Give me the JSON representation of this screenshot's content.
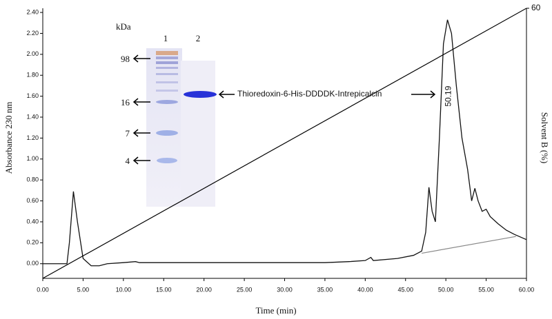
{
  "chart_data": {
    "type": "line",
    "x_label": "Time (min)",
    "y_label": "Absorbance 230 nm",
    "y2_label": "Solvent B (%)",
    "xlim": [
      0,
      60
    ],
    "xticks": [
      {
        "value": 0,
        "label": "0.00"
      },
      {
        "value": 5,
        "label": "5.00"
      },
      {
        "value": 10,
        "label": "10.00"
      },
      {
        "value": 15,
        "label": "15.00"
      },
      {
        "value": 20,
        "label": "20.00"
      },
      {
        "value": 25,
        "label": "25.00"
      },
      {
        "value": 30,
        "label": "30.00"
      },
      {
        "value": 35,
        "label": "35.00"
      },
      {
        "value": 40,
        "label": "40.00"
      },
      {
        "value": 45,
        "label": "45.00"
      },
      {
        "value": 50,
        "label": "50.00"
      },
      {
        "value": 55,
        "label": "55.00"
      },
      {
        "value": 60,
        "label": "60.00"
      }
    ],
    "ylim": [
      -0.14,
      2.44
    ],
    "yticks": [
      {
        "value": 0,
        "label": "0.00"
      },
      {
        "value": 0.2,
        "label": "0.20"
      },
      {
        "value": 0.4,
        "label": "0.40"
      },
      {
        "value": 0.6,
        "label": "0.60"
      },
      {
        "value": 0.8,
        "label": "0.80"
      },
      {
        "value": 1.0,
        "label": "1.00"
      },
      {
        "value": 1.2,
        "label": "1.20"
      },
      {
        "value": 1.4,
        "label": "1.40"
      },
      {
        "value": 1.6,
        "label": "1.60"
      },
      {
        "value": 1.8,
        "label": "1.80"
      },
      {
        "value": 2.0,
        "label": "2.00"
      },
      {
        "value": 2.2,
        "label": "2.20"
      },
      {
        "value": 2.4,
        "label": "2.40"
      }
    ],
    "y2lim": [
      0,
      60
    ],
    "y2ticks": [
      60
    ],
    "series": [
      {
        "color": "#111111",
        "x": [
          0,
          3,
          3.3,
          3.8,
          4.3,
          5,
          6,
          7,
          8,
          10,
          11.5,
          12,
          15,
          20,
          25,
          30,
          35,
          38,
          40,
          40.7,
          41,
          44,
          46,
          47,
          47.5,
          47.9,
          48.3,
          48.7,
          49.2,
          49.7,
          50.2,
          50.7,
          51.3,
          52,
          52.7,
          53.2,
          53.6,
          54,
          54.5,
          55,
          55.5,
          56.5,
          57.5,
          58.5,
          60
        ],
        "values": [
          0,
          0,
          0.2,
          0.69,
          0.4,
          0.05,
          -0.02,
          -0.02,
          0,
          0.01,
          0.02,
          0.01,
          0.01,
          0.01,
          0.01,
          0.01,
          0.01,
          0.02,
          0.03,
          0.06,
          0.03,
          0.05,
          0.08,
          0.12,
          0.3,
          0.73,
          0.5,
          0.4,
          1.2,
          2.1,
          2.33,
          2.2,
          1.7,
          1.2,
          0.9,
          0.6,
          0.72,
          0.6,
          0.5,
          0.52,
          0.45,
          0.38,
          0.32,
          0.28,
          0.23
        ]
      },
      {
        "color": "#888888",
        "x": [
          47,
          58.7
        ],
        "values": [
          0.1,
          0.26
        ]
      },
      {
        "color": "#000000",
        "axis": "y2",
        "x": [
          0,
          60
        ],
        "values": [
          0,
          60
        ]
      }
    ],
    "annotation": {
      "text": "50.19",
      "x": 50.19,
      "y": 1.6
    }
  },
  "inset": {
    "unit": "kDa",
    "lanes": [
      "1",
      "2"
    ],
    "markers": [
      "98",
      "16",
      "7",
      "4"
    ],
    "band_label": "Thioredoxin-6-His-DDDDK-Intrepicalcin"
  }
}
